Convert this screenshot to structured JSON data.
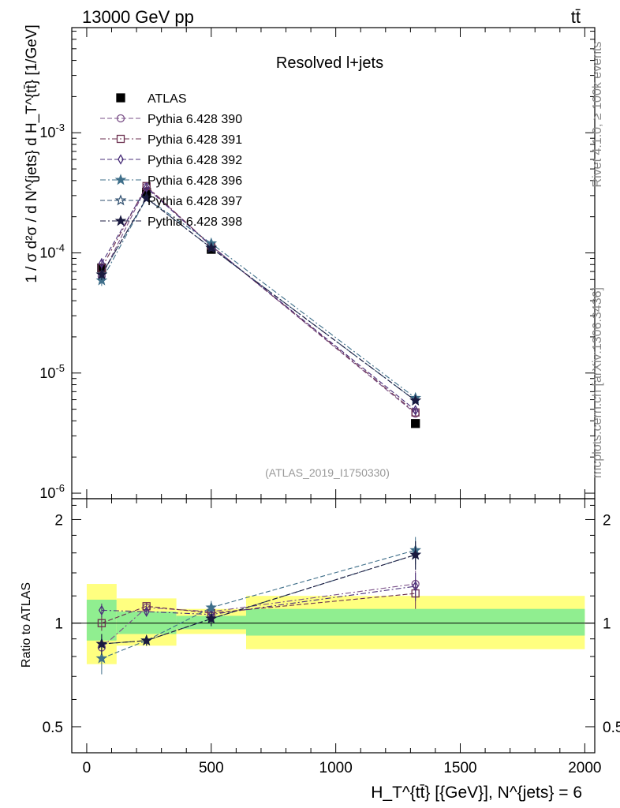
{
  "header": {
    "energy_label": "13000 GeV pp",
    "process_label": "tt̄",
    "side_label_rivet": "Rivet 4.1.0, ≥ 100k events",
    "side_label_mcplots": "mcplots.cern.ch [arXiv:1306.3436]",
    "analysis_id": "(ATLAS_2019_I1750330)"
  },
  "colors": {
    "atlas": "#000000",
    "p390": "#7a4f87",
    "p391": "#6b2f4f",
    "p392": "#4a2f7a",
    "p396": "#3f6f8a",
    "p397": "#2f4f6f",
    "p398": "#1a1a3f",
    "band_outer": "#ffff80",
    "band_inner": "#90ee90"
  },
  "chart_data": [
    {
      "type": "scatter",
      "panel": "main",
      "title": "Resolved l+jets",
      "ylabel": "1 / σ d²σ / d N^{jets} d H_T^{tt̄} [1/GeV]",
      "yscale": "log",
      "ylim": [
        9e-07,
        0.0075
      ],
      "xlim": [
        -60,
        2040
      ],
      "ytick_labels": [
        "10^-6",
        "10^-5",
        "10^-4",
        "10^-3"
      ],
      "x": [
        60,
        240,
        500,
        1320
      ],
      "series": [
        {
          "name": "ATLAS",
          "key": "atlas",
          "marker": "filled-square",
          "values": [
            7.5e-05,
            0.00032,
            0.000107,
            3.8e-06
          ],
          "errors": [
            0,
            0,
            0,
            0
          ]
        },
        {
          "name": "Pythia 6.428 390",
          "key": "p390",
          "marker": "open-circle",
          "values": [
            6.4e-05,
            0.000355,
            0.000115,
            4.6e-06
          ],
          "errors": [
            0.1,
            0.03,
            0.03,
            0.05
          ]
        },
        {
          "name": "Pythia 6.428 391",
          "key": "p391",
          "marker": "open-square",
          "values": [
            7.5e-05,
            0.00036,
            0.000115,
            4.7e-06
          ],
          "errors": [
            0.1,
            0.03,
            0.03,
            0.05
          ]
        },
        {
          "name": "Pythia 6.428 392",
          "key": "p392",
          "marker": "open-diamond",
          "values": [
            8.2e-05,
            0.00035,
            0.000114,
            4.9e-06
          ],
          "errors": [
            0.1,
            0.03,
            0.03,
            0.05
          ]
        },
        {
          "name": "Pythia 6.428 396",
          "key": "p396",
          "marker": "filled-star",
          "values": [
            5.9e-05,
            0.000285,
            0.00012,
            6.2e-06
          ],
          "errors": [
            0.1,
            0.03,
            0.03,
            0.05
          ]
        },
        {
          "name": "Pythia 6.428 397",
          "key": "p397",
          "marker": "open-star",
          "values": [
            6.6e-05,
            0.000285,
            0.00011,
            5.9e-06
          ],
          "errors": [
            0.1,
            0.03,
            0.03,
            0.05
          ]
        },
        {
          "name": "Pythia 6.428 398",
          "key": "p398",
          "marker": "filled-star",
          "values": [
            6.6e-05,
            0.000285,
            0.00011,
            5.9e-06
          ],
          "errors": [
            0.1,
            0.03,
            0.03,
            0.05
          ]
        }
      ]
    },
    {
      "type": "scatter",
      "panel": "ratio",
      "ylabel": "Ratio to ATLAS",
      "xlabel": "H_T^{tt̄} [{GeV}], N^{jets} = 6",
      "ylim": [
        0.42,
        2.3
      ],
      "xlim": [
        -60,
        2040
      ],
      "yticks": [
        0.5,
        1,
        2
      ],
      "ytick_labels": [
        "0.5",
        "1",
        "2"
      ],
      "xticks": [
        0,
        500,
        1000,
        1500,
        2000
      ],
      "xtick_labels": [
        "0",
        "500",
        "1000",
        "1500",
        "2000"
      ],
      "bins": [
        [
          0,
          120
        ],
        [
          120,
          360
        ],
        [
          360,
          640
        ],
        [
          640,
          2000
        ]
      ],
      "band_outer": [
        [
          0.76,
          1.3
        ],
        [
          0.86,
          1.18
        ],
        [
          0.93,
          1.1
        ],
        [
          0.84,
          1.2
        ]
      ],
      "band_inner": [
        [
          0.89,
          1.17
        ],
        [
          0.93,
          1.08
        ],
        [
          0.96,
          1.05
        ],
        [
          0.92,
          1.1
        ]
      ],
      "x": [
        60,
        240,
        500,
        1320
      ],
      "series": [
        {
          "name": "Pythia 6.428 390",
          "key": "p390",
          "marker": "open-circle",
          "values": [
            0.85,
            1.11,
            1.08,
            1.3
          ],
          "errors": [
            0.05,
            0.03,
            0.04,
            0.12
          ]
        },
        {
          "name": "Pythia 6.428 391",
          "key": "p391",
          "marker": "open-square",
          "values": [
            1.0,
            1.12,
            1.07,
            1.22
          ],
          "errors": [
            0.05,
            0.03,
            0.04,
            0.12
          ]
        },
        {
          "name": "Pythia 6.428 392",
          "key": "p392",
          "marker": "open-diamond",
          "values": [
            1.09,
            1.08,
            1.06,
            1.28
          ],
          "errors": [
            0.05,
            0.03,
            0.04,
            0.12
          ]
        },
        {
          "name": "Pythia 6.428 396",
          "key": "p396",
          "marker": "filled-star",
          "values": [
            0.79,
            0.89,
            1.11,
            1.63
          ],
          "errors": [
            0.08,
            0.03,
            0.05,
            0.15
          ]
        },
        {
          "name": "Pythia 6.428 397",
          "key": "p397",
          "marker": "open-star",
          "values": [
            0.87,
            0.89,
            1.03,
            1.58
          ],
          "errors": [
            0.06,
            0.03,
            0.05,
            0.15
          ]
        },
        {
          "name": "Pythia 6.428 398",
          "key": "p398",
          "marker": "filled-star",
          "values": [
            0.87,
            0.89,
            1.03,
            1.58
          ],
          "errors": [
            0.06,
            0.03,
            0.05,
            0.15
          ]
        }
      ]
    }
  ]
}
